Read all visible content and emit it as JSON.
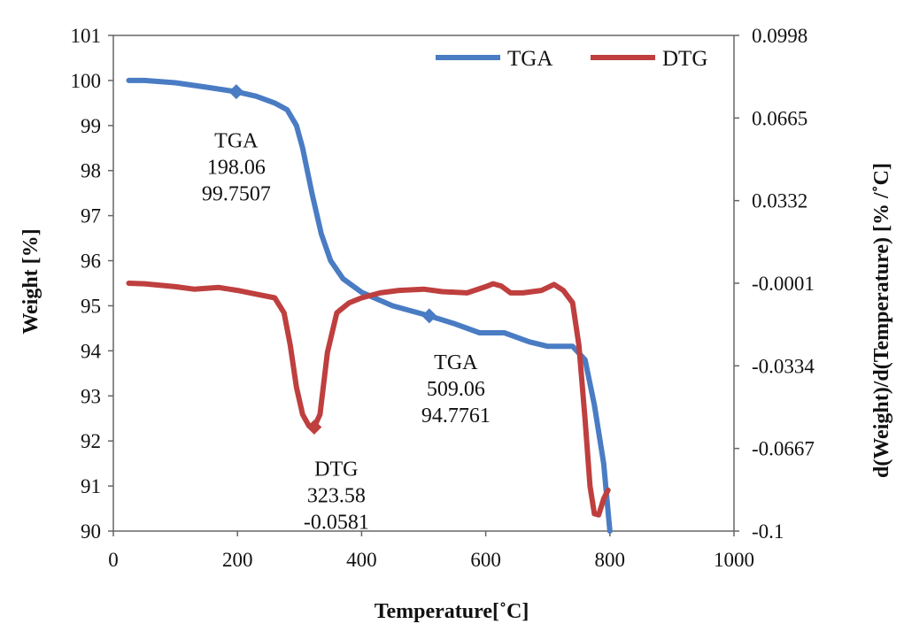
{
  "chart_data": {
    "type": "line",
    "xlabel": "Temperature[˚C]",
    "ylabel": "Weight [%]",
    "y2label": "d(Weight)/d(Temperature)  [% /˚C]",
    "xlim": [
      0,
      1000
    ],
    "ylim": [
      90,
      101
    ],
    "y2lim": [
      -0.1,
      0.0998
    ],
    "x_ticks": [
      0,
      200,
      400,
      600,
      800,
      1000
    ],
    "y_ticks": [
      90,
      91,
      92,
      93,
      94,
      95,
      96,
      97,
      98,
      99,
      100,
      101
    ],
    "y2_ticks": [
      -0.1,
      -0.0667,
      -0.0334,
      -0.0001,
      0.0332,
      0.0665,
      0.0998
    ],
    "x_tick_labels": [
      "0",
      "200",
      "400",
      "600",
      "800",
      "1000"
    ],
    "y_tick_labels": [
      "90",
      "91",
      "92",
      "93",
      "94",
      "95",
      "96",
      "97",
      "98",
      "99",
      "100",
      "101"
    ],
    "y2_tick_labels": [
      "-0.1",
      "-0.0667",
      "-0.0334",
      "-0.0001",
      "0.0332",
      "0.0665",
      "0.0998"
    ],
    "grid": false,
    "legend": "top-right",
    "series": [
      {
        "name": "TGA",
        "axis": "left",
        "color": "#4a7cc4",
        "x": [
          25,
          50,
          100,
          150,
          198.06,
          230,
          260,
          280,
          295,
          305,
          320,
          335,
          350,
          370,
          400,
          450,
          509.06,
          550,
          590,
          630,
          670,
          700,
          740,
          760,
          775,
          790,
          800
        ],
        "y": [
          100,
          100,
          99.95,
          99.85,
          99.7507,
          99.65,
          99.5,
          99.35,
          99.0,
          98.5,
          97.5,
          96.6,
          96.0,
          95.6,
          95.3,
          95.0,
          94.7761,
          94.6,
          94.4,
          94.4,
          94.2,
          94.1,
          94.1,
          93.8,
          92.8,
          91.5,
          90.0
        ]
      },
      {
        "name": "DTG",
        "axis": "right",
        "color": "#bf3f3f",
        "x": [
          25,
          50,
          100,
          130,
          170,
          200,
          230,
          260,
          275,
          285,
          295,
          305,
          315,
          323.58,
          333,
          345,
          360,
          380,
          400,
          430,
          460,
          500,
          530,
          570,
          600,
          612,
          625,
          640,
          660,
          690,
          710,
          725,
          740,
          750,
          760,
          768,
          775,
          782,
          790,
          797
        ],
        "y": [
          -0.0001,
          -0.0003,
          -0.0015,
          -0.0025,
          -0.0018,
          -0.003,
          -0.0045,
          -0.006,
          -0.012,
          -0.025,
          -0.042,
          -0.053,
          -0.0575,
          -0.0581,
          -0.053,
          -0.028,
          -0.012,
          -0.008,
          -0.006,
          -0.004,
          -0.003,
          -0.0025,
          -0.0035,
          -0.004,
          -0.0015,
          -0.0003,
          -0.0012,
          -0.004,
          -0.004,
          -0.003,
          -0.0006,
          -0.003,
          -0.008,
          -0.025,
          -0.055,
          -0.082,
          -0.093,
          -0.0935,
          -0.087,
          -0.0835
        ]
      }
    ],
    "annotations": [
      {
        "series": "TGA",
        "x": 198.06,
        "y": 99.7507,
        "lines": [
          "TGA",
          "198.06",
          "99.7507"
        ]
      },
      {
        "series": "TGA",
        "x": 509.06,
        "y": 94.7761,
        "lines": [
          "TGA",
          "509.06",
          "94.7761"
        ]
      },
      {
        "series": "DTG",
        "x": 323.58,
        "y": -0.0581,
        "lines": [
          "DTG",
          "323.58",
          "-0.0581"
        ]
      }
    ]
  }
}
